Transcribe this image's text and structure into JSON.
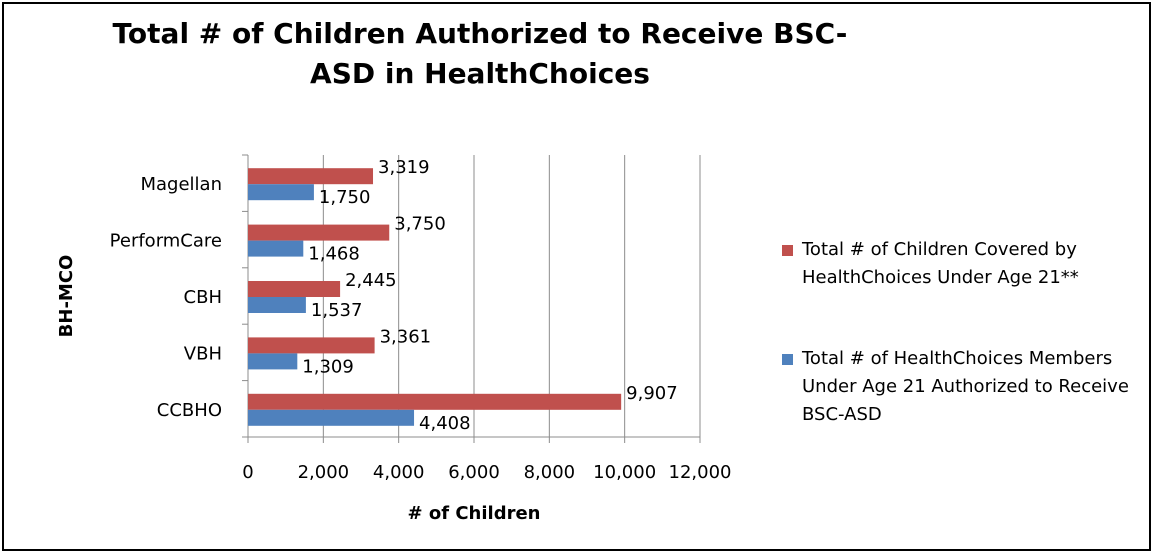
{
  "chart_data": {
    "type": "bar",
    "orientation": "horizontal",
    "title": "Total # of Children Authorized to Receive BSC-ASD in HealthChoices",
    "xlabel": "# of Children",
    "ylabel": "BH-MCO",
    "categories": [
      "Magellan",
      "PerformCare",
      "CBH",
      "VBH",
      "CCBHO"
    ],
    "series": [
      {
        "name": "Total # of Children Covered by HealthChoices Under Age 21**",
        "color": "#C0504D",
        "values": [
          3319,
          3750,
          2445,
          3361,
          9907
        ],
        "labels": [
          "3,319",
          "3,750",
          "2,445",
          "3,361",
          "9,907"
        ]
      },
      {
        "name": "Total # of HealthChoices Members Under Age 21 Authorized to Receive BSC-ASD",
        "color": "#4F81BD",
        "values": [
          1750,
          1468,
          1537,
          1309,
          4408
        ],
        "labels": [
          "1,750",
          "1,468",
          "1,537",
          "1,309",
          "4,408"
        ]
      }
    ],
    "xlim": [
      0,
      12000
    ],
    "xticks": [
      0,
      2000,
      4000,
      6000,
      8000,
      10000,
      12000
    ],
    "xtick_labels": [
      "0",
      "2,000",
      "4,000",
      "6,000",
      "8,000",
      "10,000",
      "12,000"
    ],
    "grid": true,
    "legend_position": "right"
  }
}
